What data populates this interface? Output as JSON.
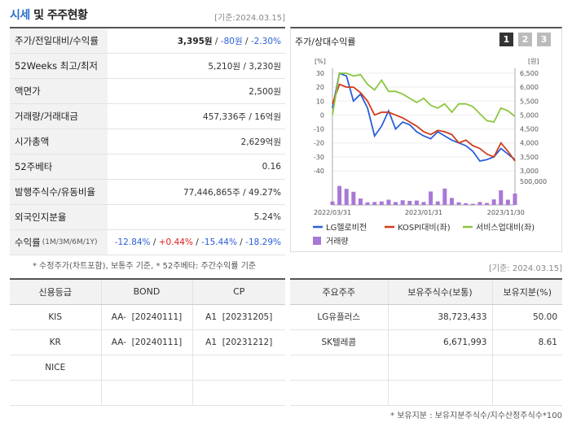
{
  "header": {
    "title_blue": "시세",
    "title_rest": " 및 주주현황",
    "date": "[기준:2024.03.15]"
  },
  "summary": {
    "rows": [
      {
        "label": "주가/전일대비/수익률",
        "price": "3,395원",
        "sep1": " / ",
        "change": "-80원",
        "sep2": " / ",
        "rate": "-2.30%"
      },
      {
        "label": "52Weeks 최고/최저",
        "value": "5,210원 / 3,230원"
      },
      {
        "label": "액면가",
        "value": "2,500원"
      },
      {
        "label": "거래량/거래대금",
        "value": "457,336주 / 16억원"
      },
      {
        "label": "시가총액",
        "value": "2,629억원"
      },
      {
        "label": "52주베타",
        "value": "0.16"
      },
      {
        "label": "발행주식수/유동비율",
        "value": "77,446,865주 / 49.27%"
      },
      {
        "label": "외국인지분율",
        "value": "5.24%"
      }
    ],
    "returns": {
      "label": "수익률",
      "label_small": "(1M/3M/6M/1Y)",
      "r1m": "-12.84%",
      "r3m": "+0.44%",
      "r6m": "-15.44%",
      "r1y": "-18.29%",
      "sep": " / "
    },
    "note": "* 수정주가(차트포함), 보통주 기준, * 52주베타: 주간수익률 기준"
  },
  "chart": {
    "title": "주가/상대수익률",
    "tabs": [
      "1",
      "2",
      "3"
    ],
    "date": "[기준: 2024.03.15]",
    "colors": {
      "lg": "#2a5ed8",
      "kospi": "#d03a1a",
      "service": "#8cc63f",
      "volume": "#a978d6",
      "tab_active": "#333333",
      "tab_inactive": "#bbbbbb"
    }
  },
  "chart_data": {
    "type": "line",
    "left_unit": "[%]",
    "right_unit": "[원]",
    "left_ticks": [
      "30",
      "20",
      "10",
      "0",
      "-10",
      "-20",
      "-30",
      "-40"
    ],
    "right_ticks": [
      "6,500",
      "6,000",
      "5,500",
      "5,000",
      "4,500",
      "4,000",
      "3,500",
      "3,000"
    ],
    "volume_tick": "500,000",
    "x_labels": [
      "2022/03/31",
      "2023/01/31",
      "2023/11/30"
    ],
    "ylim_left": [
      -40,
      30
    ],
    "series": [
      {
        "name": "LG헬로비전",
        "key": "lg",
        "values": [
          5,
          30,
          28,
          10,
          15,
          5,
          -15,
          -8,
          3,
          -10,
          -5,
          -7,
          -12,
          -15,
          -17,
          -12,
          -15,
          -18,
          -20,
          -22,
          -26,
          -33,
          -32,
          -30,
          -24,
          -28,
          -32
        ]
      },
      {
        "name": "KOSPI대비(좌)",
        "key": "kospi",
        "values": [
          8,
          22,
          20,
          20,
          16,
          10,
          0,
          2,
          2,
          0,
          -2,
          -5,
          -8,
          -12,
          -14,
          -11,
          -12,
          -14,
          -20,
          -18,
          -22,
          -24,
          -28,
          -30,
          -20,
          -26,
          -33
        ]
      },
      {
        "name": "서비스업대비(좌)",
        "key": "service",
        "values": [
          0,
          30,
          30,
          28,
          29,
          22,
          18,
          25,
          17,
          17,
          15,
          12,
          9,
          12,
          7,
          5,
          8,
          2,
          8,
          8,
          6,
          1,
          -4,
          -5,
          5,
          3,
          -1
        ]
      }
    ],
    "volume": [
      0.12,
      0.65,
      0.55,
      0.45,
      0.22,
      0.09,
      0.1,
      0.12,
      0.18,
      0.1,
      0.16,
      0.14,
      0.15,
      0.1,
      0.46,
      0.12,
      0.56,
      0.24,
      0.09,
      0.06,
      0.04,
      0.1,
      0.07,
      0.19,
      0.5,
      0.18,
      0.39
    ],
    "volume_label": "거래량"
  },
  "credit": {
    "headers": [
      "신용등급",
      "BOND",
      "CP"
    ],
    "rows": [
      {
        "agency": "KIS",
        "bond": "AA-  [20240111]",
        "cp": "A1  [20231205]"
      },
      {
        "agency": "KR",
        "bond": "AA-  [20240111]",
        "cp": "A1  [20231212]"
      },
      {
        "agency": "NICE",
        "bond": "",
        "cp": ""
      },
      {
        "agency": "",
        "bond": "",
        "cp": ""
      }
    ]
  },
  "holders": {
    "headers": [
      "주요주주",
      "보유주식수(보통)",
      "보유지분(%)"
    ],
    "rows": [
      {
        "name": "LG유플러스",
        "shares": "38,723,433",
        "pct": "50.00"
      },
      {
        "name": "SK텔레콤",
        "shares": "6,671,993",
        "pct": "8.61"
      },
      {
        "name": "",
        "shares": "",
        "pct": ""
      },
      {
        "name": "",
        "shares": "",
        "pct": ""
      }
    ],
    "note": "* 보유지분 : 보유지분주식수/지수산정주식수*100"
  }
}
